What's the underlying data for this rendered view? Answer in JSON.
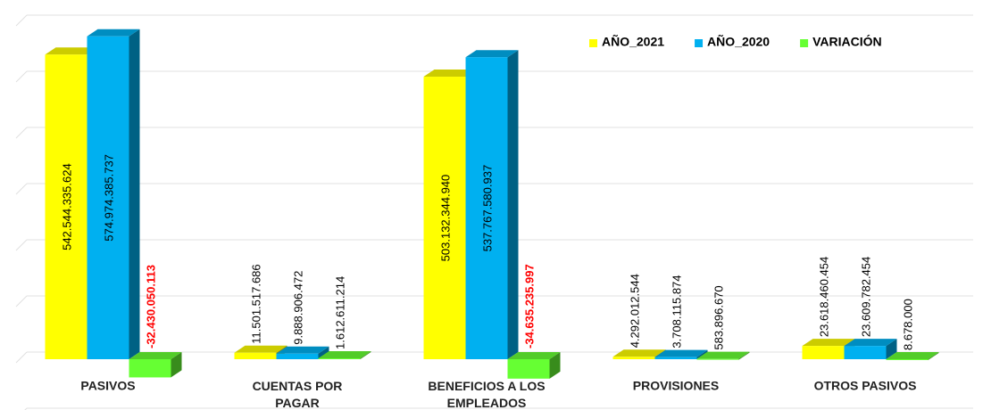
{
  "chart_data": {
    "type": "bar3d",
    "categories": [
      "PASIVOS",
      "CUENTAS POR PAGAR",
      "BENEFICIOS A LOS EMPLEADOS",
      "PROVISIONES",
      "OTROS PASIVOS"
    ],
    "series": [
      {
        "name": "AÑO_2021",
        "color": "#ffff00",
        "values": [
          542544335624,
          11501517686,
          503132344940,
          4292012544,
          23618460454
        ],
        "value_labels": [
          "542.544.335.624",
          "11.501.517.686",
          "503.132.344.940",
          "4.292.012.544",
          "23.618.460.454"
        ]
      },
      {
        "name": "AÑO_2020",
        "color": "#00b0f0",
        "values": [
          574974385737,
          9888906472,
          537767580937,
          3708115874,
          23609782454
        ],
        "value_labels": [
          "574.974.385.737",
          "9.888.906.472",
          "537.767.580.937",
          "3.708.115.874",
          "23.609.782.454"
        ]
      },
      {
        "name": "VARIACIÓN",
        "color": "#66ff33",
        "values": [
          -32430050113,
          1612611214,
          -34635235997,
          583896670,
          8678000
        ],
        "value_labels": [
          "-32.430.050.113",
          "1.612.611.214",
          "-34.635.235.997",
          "583.896.670",
          "8.678.000"
        ]
      }
    ],
    "negative_label_color": "#ff0000",
    "ylim": [
      -100000000000,
      600000000000
    ],
    "yticks": [
      -100000000000,
      0,
      100000000000,
      200000000000,
      300000000000,
      400000000000,
      500000000000,
      600000000000
    ],
    "grid": true,
    "legend": "top-right"
  }
}
